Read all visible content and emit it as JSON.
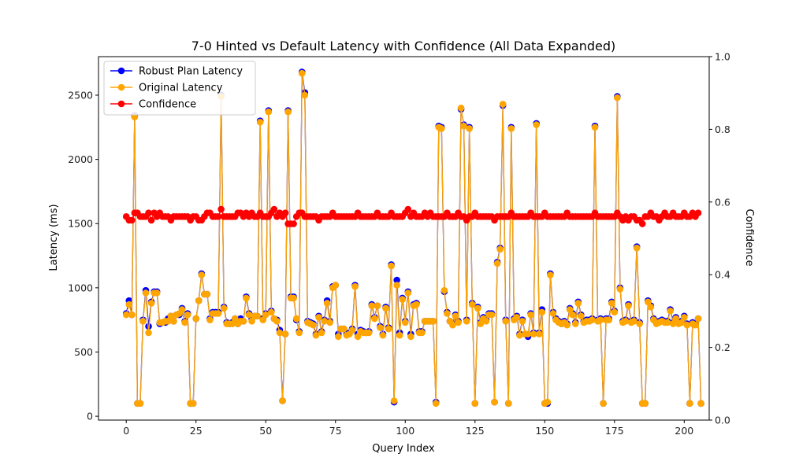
{
  "chart_data": {
    "type": "line",
    "title": "7-0 Hinted vs Default Latency with Confidence (All Data Expanded)",
    "xlabel": "Query Index",
    "ylabel": "Latency (ms)",
    "y2label": "Confidence",
    "xlim": [
      -9.95,
      208.95
    ],
    "ylim": [
      -30,
      2800
    ],
    "y2lim": [
      0,
      1
    ],
    "xticks": [
      0,
      25,
      50,
      75,
      100,
      125,
      150,
      175,
      200
    ],
    "yticks": [
      0,
      500,
      1000,
      1500,
      2000,
      2500
    ],
    "y2ticks": [
      0.0,
      0.2,
      0.4,
      0.6,
      0.8,
      1.0
    ],
    "legend_position": "upper-left",
    "grid": false,
    "series": [
      {
        "name": "Robust Plan Latency",
        "axis": "left",
        "color": "#0000ff",
        "values": [
          800,
          900,
          790,
          2340,
          100,
          100,
          750,
          980,
          700,
          890,
          970,
          970,
          720,
          730,
          730,
          760,
          780,
          740,
          790,
          790,
          840,
          740,
          800,
          100,
          100,
          760,
          900,
          1110,
          950,
          950,
          760,
          810,
          810,
          810,
          2500,
          850,
          730,
          720,
          730,
          760,
          720,
          760,
          740,
          930,
          800,
          760,
          780,
          780,
          2300,
          760,
          800,
          2380,
          820,
          760,
          750,
          670,
          120,
          640,
          2380,
          930,
          930,
          750,
          660,
          2680,
          2520,
          740,
          730,
          720,
          640,
          780,
          660,
          750,
          900,
          740,
          1010,
          1020,
          640,
          680,
          680,
          640,
          650,
          680,
          1020,
          640,
          670,
          660,
          650,
          660,
          870,
          770,
          860,
          700,
          640,
          850,
          690,
          1180,
          110,
          1060,
          650,
          920,
          740,
          970,
          640,
          870,
          880,
          660,
          660,
          740,
          740,
          740,
          740,
          110,
          2260,
          2250,
          970,
          810,
          740,
          720,
          790,
          740,
          2390,
          2270,
          750,
          2250,
          880,
          100,
          850,
          730,
          770,
          750,
          800,
          800,
          110,
          1200,
          1310,
          2420,
          750,
          100,
          2250,
          760,
          780,
          640,
          750,
          640,
          620,
          800,
          650,
          2280,
          650,
          830,
          100,
          100,
          1110,
          810,
          760,
          740,
          720,
          740,
          720,
          840,
          800,
          730,
          890,
          790,
          740,
          750,
          750,
          760,
          2260,
          750,
          760,
          100,
          760,
          760,
          890,
          820,
          2490,
          1000,
          740,
          750,
          870,
          740,
          750,
          1320,
          730,
          100,
          100,
          900,
          860,
          760,
          730,
          740,
          750,
          740,
          740,
          830,
          730,
          770,
          730,
          740,
          780,
          720,
          100,
          730,
          720,
          760,
          100
        ],
        "stroke_width": 1.3
      },
      {
        "name": "Original Latency",
        "axis": "left",
        "color": "#ffa500",
        "values": [
          790,
          870,
          790,
          2330,
          100,
          100,
          740,
          960,
          650,
          880,
          960,
          960,
          730,
          730,
          740,
          740,
          780,
          740,
          790,
          800,
          830,
          730,
          790,
          100,
          100,
          760,
          900,
          1100,
          950,
          950,
          750,
          800,
          800,
          800,
          2490,
          840,
          720,
          720,
          720,
          760,
          720,
          740,
          740,
          920,
          790,
          740,
          780,
          780,
          2290,
          750,
          790,
          2370,
          810,
          760,
          740,
          650,
          120,
          640,
          2370,
          920,
          920,
          760,
          650,
          2670,
          2500,
          730,
          720,
          710,
          630,
          770,
          650,
          740,
          880,
          730,
          1000,
          1020,
          620,
          680,
          680,
          630,
          640,
          670,
          1010,
          620,
          660,
          650,
          650,
          650,
          860,
          760,
          860,
          690,
          630,
          840,
          680,
          1170,
          120,
          1020,
          630,
          910,
          730,
          960,
          620,
          860,
          870,
          650,
          650,
          740,
          740,
          740,
          740,
          100,
          2250,
          2240,
          980,
          800,
          740,
          710,
          780,
          730,
          2400,
          2260,
          740,
          2240,
          870,
          100,
          840,
          720,
          760,
          740,
          790,
          790,
          110,
          1190,
          1300,
          2430,
          740,
          100,
          2240,
          750,
          770,
          630,
          740,
          640,
          640,
          790,
          640,
          2270,
          640,
          810,
          100,
          110,
          1100,
          800,
          750,
          730,
          720,
          730,
          710,
          830,
          790,
          720,
          880,
          780,
          730,
          740,
          740,
          750,
          2250,
          740,
          750,
          100,
          750,
          750,
          880,
          810,
          2480,
          990,
          730,
          740,
          860,
          730,
          740,
          1310,
          720,
          100,
          100,
          890,
          850,
          750,
          720,
          730,
          740,
          730,
          730,
          820,
          720,
          760,
          720,
          730,
          770,
          710,
          100,
          720,
          710,
          760,
          100
        ],
        "stroke_width": 1.3
      },
      {
        "name": "Confidence",
        "axis": "right",
        "color": "#ff0000",
        "values": [
          0.56,
          0.55,
          0.55,
          0.57,
          0.57,
          0.56,
          0.56,
          0.56,
          0.57,
          0.55,
          0.57,
          0.56,
          0.57,
          0.56,
          0.56,
          0.56,
          0.55,
          0.56,
          0.56,
          0.56,
          0.56,
          0.56,
          0.56,
          0.55,
          0.56,
          0.56,
          0.55,
          0.55,
          0.56,
          0.57,
          0.57,
          0.56,
          0.56,
          0.56,
          0.58,
          0.56,
          0.56,
          0.56,
          0.56,
          0.56,
          0.57,
          0.57,
          0.56,
          0.57,
          0.56,
          0.57,
          0.56,
          0.56,
          0.57,
          0.56,
          0.56,
          0.56,
          0.57,
          0.58,
          0.56,
          0.57,
          0.56,
          0.57,
          0.54,
          0.54,
          0.54,
          0.56,
          0.57,
          0.57,
          0.56,
          0.56,
          0.56,
          0.56,
          0.56,
          0.55,
          0.56,
          0.56,
          0.56,
          0.56,
          0.57,
          0.56,
          0.56,
          0.56,
          0.56,
          0.56,
          0.56,
          0.56,
          0.56,
          0.57,
          0.56,
          0.56,
          0.56,
          0.56,
          0.56,
          0.56,
          0.57,
          0.56,
          0.56,
          0.56,
          0.56,
          0.57,
          0.56,
          0.56,
          0.56,
          0.56,
          0.57,
          0.58,
          0.56,
          0.57,
          0.56,
          0.56,
          0.56,
          0.57,
          0.56,
          0.57,
          0.56,
          0.56,
          0.56,
          0.56,
          0.56,
          0.57,
          0.56,
          0.56,
          0.56,
          0.57,
          0.56,
          0.56,
          0.55,
          0.56,
          0.56,
          0.57,
          0.56,
          0.56,
          0.56,
          0.56,
          0.56,
          0.56,
          0.55,
          0.56,
          0.56,
          0.56,
          0.56,
          0.56,
          0.57,
          0.56,
          0.56,
          0.56,
          0.56,
          0.56,
          0.56,
          0.57,
          0.56,
          0.56,
          0.56,
          0.56,
          0.57,
          0.56,
          0.56,
          0.56,
          0.56,
          0.56,
          0.56,
          0.56,
          0.57,
          0.56,
          0.56,
          0.56,
          0.56,
          0.56,
          0.56,
          0.56,
          0.56,
          0.56,
          0.57,
          0.56,
          0.56,
          0.56,
          0.56,
          0.56,
          0.56,
          0.56,
          0.57,
          0.56,
          0.55,
          0.56,
          0.55,
          0.56,
          0.56,
          0.55,
          0.55,
          0.54,
          0.56,
          0.56,
          0.57,
          0.56,
          0.56,
          0.55,
          0.56,
          0.57,
          0.56,
          0.56,
          0.57,
          0.56,
          0.56,
          0.56,
          0.57,
          0.56,
          0.56,
          0.57,
          0.56,
          0.57
        ],
        "stroke_width": 1.3
      }
    ]
  }
}
